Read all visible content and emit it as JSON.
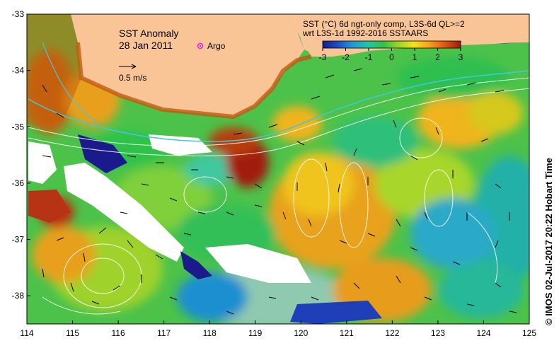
{
  "map": {
    "title": "SST Anomaly",
    "date": "28 Jan 2011",
    "argo_label": "Argo",
    "velocity_label": "0.5 m/s",
    "header_line1": "SST (°C) 6d ngt-only comp, L3S-6d QL>=2",
    "header_line2": "wrt L3S-1d 1992-2016 SSTAARS",
    "credit": "© IMOS 02-Jul-2017 20:22 Hobart Time",
    "colors": {
      "land": "#f9c596",
      "frame": "#000000"
    },
    "colorbar": {
      "ticks": [
        "-3",
        "-2",
        "-1",
        "0",
        "1",
        "2",
        "3"
      ],
      "range": [
        -3,
        3
      ],
      "colors": [
        "#1a1a8c",
        "#1e4ec8",
        "#1f9bd8",
        "#22c7a4",
        "#2fc24a",
        "#9cd62a",
        "#f2e21e",
        "#f4a31a",
        "#e05a14",
        "#9b1a0a"
      ]
    },
    "x_ticks": [
      "114",
      "115",
      "116",
      "117",
      "118",
      "119",
      "120",
      "121",
      "122",
      "123",
      "124",
      "125"
    ],
    "y_ticks": [
      "-33",
      "-34",
      "-35",
      "-36",
      "-37",
      "-38"
    ],
    "lon_range": [
      114,
      125
    ],
    "lat_range": [
      -38.5,
      -33
    ]
  }
}
